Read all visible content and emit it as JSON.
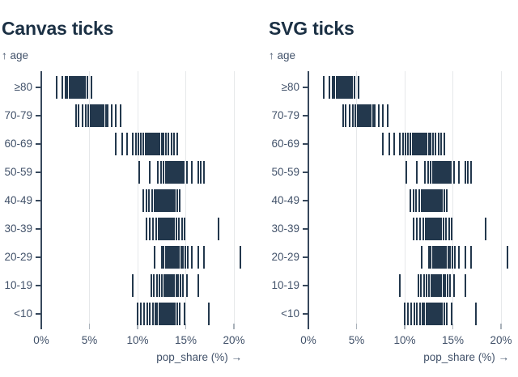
{
  "page": {
    "background": "#ffffff"
  },
  "colors": {
    "title": "#1b3044",
    "axis": "#37485c",
    "label": "#42526a",
    "tick_mark": "#23384d",
    "gridline": "#e6e8ea",
    "x_stub": "#aab2ba"
  },
  "charts": [
    {
      "title": "Canvas ticks",
      "y_axis_label": "↑ age",
      "x_axis_title": "pop_share (%) →"
    },
    {
      "title": "SVG ticks",
      "y_axis_label": "↑ age",
      "x_axis_title": "pop_share (%) →"
    }
  ],
  "chart_data": [
    {
      "type": "strip",
      "title": "Canvas ticks",
      "xlabel": "pop_share (%)",
      "ylabel": "age",
      "xlim": [
        0,
        21
      ],
      "x_tick_values": [
        0,
        5,
        10,
        15,
        20
      ],
      "x_tick_labels": [
        "0%",
        "5%",
        "10%",
        "15%",
        "20%"
      ],
      "gridlines": [
        5,
        10,
        15,
        20
      ],
      "categories": [
        "≥80",
        "70-79",
        "60-69",
        "50-59",
        "40-49",
        "30-39",
        "20-29",
        "10-19",
        "<10"
      ],
      "series": [
        {
          "name": "≥80",
          "values": [
            1.6,
            2.15,
            2.5,
            2.65,
            2.9,
            3.0,
            3.1,
            3.2,
            3.3,
            3.4,
            3.5,
            3.6,
            3.7,
            3.8,
            3.9,
            4.0,
            4.1,
            4.2,
            4.3,
            4.4,
            4.55,
            4.8,
            5.2
          ]
        },
        {
          "name": "70-79",
          "values": [
            3.6,
            3.9,
            4.3,
            4.6,
            4.9,
            5.1,
            5.3,
            5.5,
            5.6,
            5.7,
            5.8,
            5.9,
            6.0,
            6.1,
            6.2,
            6.35,
            6.5,
            6.7,
            6.9,
            7.3,
            7.7,
            8.2
          ]
        },
        {
          "name": "60-69",
          "values": [
            7.7,
            8.4,
            8.9,
            9.5,
            9.8,
            10.1,
            10.35,
            10.6,
            10.8,
            11.0,
            11.15,
            11.3,
            11.45,
            11.6,
            11.7,
            11.8,
            11.9,
            12.0,
            12.15,
            12.3,
            12.5,
            12.7,
            12.95,
            13.2,
            13.5,
            13.8,
            14.1
          ]
        },
        {
          "name": "50-59",
          "values": [
            10.2,
            11.3,
            12.1,
            12.45,
            12.7,
            12.9,
            13.05,
            13.2,
            13.35,
            13.5,
            13.6,
            13.7,
            13.8,
            13.9,
            14.0,
            14.15,
            14.3,
            14.45,
            14.6,
            14.8,
            15.1,
            15.6,
            16.3,
            16.55,
            16.9
          ]
        },
        {
          "name": "40-49",
          "values": [
            10.6,
            10.9,
            11.2,
            11.5,
            11.75,
            11.95,
            12.1,
            12.25,
            12.4,
            12.5,
            12.6,
            12.7,
            12.8,
            12.9,
            13.0,
            13.1,
            13.2,
            13.35,
            13.5,
            13.7,
            13.9,
            14.15,
            14.4
          ]
        },
        {
          "name": "30-39",
          "values": [
            10.9,
            11.25,
            11.6,
            11.9,
            12.15,
            12.35,
            12.5,
            12.6,
            12.7,
            12.8,
            12.9,
            13.0,
            13.1,
            13.2,
            13.3,
            13.45,
            13.6,
            13.8,
            14.0,
            14.3,
            14.6,
            14.9,
            18.4
          ]
        },
        {
          "name": "20-29",
          "values": [
            11.8,
            12.5,
            12.7,
            12.9,
            13.05,
            13.2,
            13.3,
            13.4,
            13.5,
            13.6,
            13.7,
            13.8,
            13.9,
            14.0,
            14.15,
            14.3,
            14.5,
            14.7,
            14.95,
            15.2,
            15.6,
            16.3,
            16.9,
            20.7
          ]
        },
        {
          "name": "10-19",
          "values": [
            9.5,
            11.4,
            11.7,
            12.0,
            12.3,
            12.55,
            12.75,
            12.9,
            13.0,
            13.1,
            13.2,
            13.3,
            13.4,
            13.5,
            13.65,
            13.8,
            14.0,
            14.2,
            14.45,
            14.7,
            15.1,
            16.3
          ]
        },
        {
          "name": "<10",
          "values": [
            10.0,
            10.35,
            10.7,
            11.0,
            11.3,
            11.6,
            11.85,
            12.05,
            12.25,
            12.45,
            12.6,
            12.75,
            12.9,
            13.05,
            13.2,
            13.35,
            13.5,
            13.7,
            13.9,
            14.15,
            14.4,
            14.9,
            17.4
          ]
        }
      ]
    },
    {
      "type": "strip",
      "title": "SVG ticks",
      "xlabel": "pop_share (%)",
      "ylabel": "age",
      "xlim": [
        0,
        21
      ],
      "x_tick_values": [
        0,
        5,
        10,
        15,
        20
      ],
      "x_tick_labels": [
        "0%",
        "5%",
        "10%",
        "15%",
        "20%"
      ],
      "gridlines": [
        5,
        10,
        15,
        20
      ],
      "categories": [
        "≥80",
        "70-79",
        "60-69",
        "50-59",
        "40-49",
        "30-39",
        "20-29",
        "10-19",
        "<10"
      ],
      "series": [
        {
          "name": "≥80",
          "values": [
            1.6,
            2.15,
            2.5,
            2.65,
            2.9,
            3.0,
            3.1,
            3.2,
            3.3,
            3.4,
            3.5,
            3.6,
            3.7,
            3.8,
            3.9,
            4.0,
            4.1,
            4.2,
            4.3,
            4.4,
            4.55,
            4.8,
            5.2
          ]
        },
        {
          "name": "70-79",
          "values": [
            3.6,
            3.9,
            4.3,
            4.6,
            4.9,
            5.1,
            5.3,
            5.5,
            5.6,
            5.7,
            5.8,
            5.9,
            6.0,
            6.1,
            6.2,
            6.35,
            6.5,
            6.7,
            6.9,
            7.3,
            7.7,
            8.2
          ]
        },
        {
          "name": "60-69",
          "values": [
            7.7,
            8.4,
            8.9,
            9.5,
            9.8,
            10.1,
            10.35,
            10.6,
            10.8,
            11.0,
            11.15,
            11.3,
            11.45,
            11.6,
            11.7,
            11.8,
            11.9,
            12.0,
            12.15,
            12.3,
            12.5,
            12.7,
            12.95,
            13.2,
            13.5,
            13.8,
            14.1
          ]
        },
        {
          "name": "50-59",
          "values": [
            10.2,
            11.3,
            12.1,
            12.45,
            12.7,
            12.9,
            13.05,
            13.2,
            13.35,
            13.5,
            13.6,
            13.7,
            13.8,
            13.9,
            14.0,
            14.15,
            14.3,
            14.45,
            14.6,
            14.8,
            15.1,
            15.6,
            16.3,
            16.55,
            16.9
          ]
        },
        {
          "name": "40-49",
          "values": [
            10.6,
            10.9,
            11.2,
            11.5,
            11.75,
            11.95,
            12.1,
            12.25,
            12.4,
            12.5,
            12.6,
            12.7,
            12.8,
            12.9,
            13.0,
            13.1,
            13.2,
            13.35,
            13.5,
            13.7,
            13.9,
            14.15,
            14.4
          ]
        },
        {
          "name": "30-39",
          "values": [
            10.9,
            11.25,
            11.6,
            11.9,
            12.15,
            12.35,
            12.5,
            12.6,
            12.7,
            12.8,
            12.9,
            13.0,
            13.1,
            13.2,
            13.3,
            13.45,
            13.6,
            13.8,
            14.0,
            14.3,
            14.6,
            14.9,
            18.4
          ]
        },
        {
          "name": "20-29",
          "values": [
            11.8,
            12.5,
            12.7,
            12.9,
            13.05,
            13.2,
            13.3,
            13.4,
            13.5,
            13.6,
            13.7,
            13.8,
            13.9,
            14.0,
            14.15,
            14.3,
            14.5,
            14.7,
            14.95,
            15.2,
            15.6,
            16.3,
            16.9,
            20.7
          ]
        },
        {
          "name": "10-19",
          "values": [
            9.5,
            11.4,
            11.7,
            12.0,
            12.3,
            12.55,
            12.75,
            12.9,
            13.0,
            13.1,
            13.2,
            13.3,
            13.4,
            13.5,
            13.65,
            13.8,
            14.0,
            14.2,
            14.45,
            14.7,
            15.1,
            16.3
          ]
        },
        {
          "name": "<10",
          "values": [
            10.0,
            10.35,
            10.7,
            11.0,
            11.3,
            11.6,
            11.85,
            12.05,
            12.25,
            12.45,
            12.6,
            12.75,
            12.9,
            13.05,
            13.2,
            13.35,
            13.5,
            13.7,
            13.9,
            14.15,
            14.4,
            14.9,
            17.4
          ]
        }
      ]
    }
  ]
}
